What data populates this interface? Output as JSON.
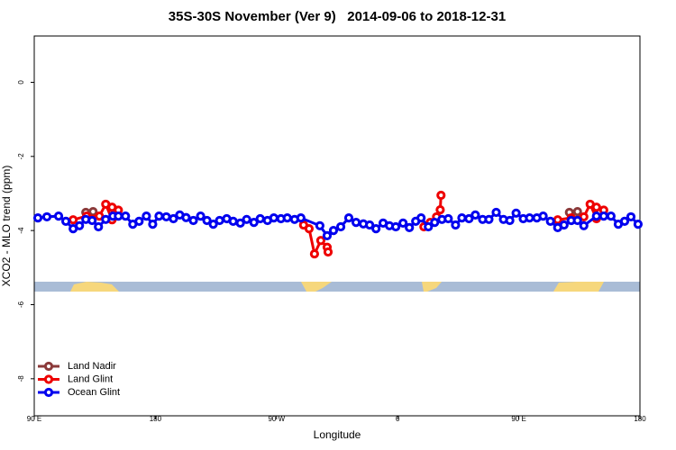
{
  "chart_data": {
    "type": "scatter",
    "title": "35S-30S November (Ver 9)   2014-09-06 to 2018-12-31",
    "xlabel": "Longitude",
    "ylabel": "XCO2 - MLO trend (ppm)",
    "xlim": [
      90,
      540
    ],
    "ylim": [
      -9,
      1.25
    ],
    "xticks": [
      {
        "value": 90,
        "label": "90 E"
      },
      180,
      {
        "value": 270,
        "label": "90 W"
      },
      {
        "value": 360,
        "label": "0"
      },
      {
        "value": 450,
        "label": "90 E"
      },
      {
        "value": 540,
        "label": "180"
      }
    ],
    "yticks": [
      0,
      -2,
      -4,
      -6,
      -8
    ],
    "legend": "bottom-left",
    "series": [
      {
        "name": "Land Nadir",
        "color": "#8b3a3a",
        "x": [
          128.3,
          133.7,
          null,
          487.6,
          493.6
        ],
        "values": [
          -3.51,
          -3.49,
          null,
          -3.51,
          -3.49
        ]
      },
      {
        "name": "Land Glint",
        "color": "#ee0000",
        "x": [
          118.9,
          128.9,
          138.4,
          143.1,
          147.8,
          147.8,
          152.5,
          null,
          290.1,
          294.2,
          298.2,
          302.9,
          307.6,
          308.3,
          null,
          379.5,
          384.2,
          388.9,
          391.6,
          392.2,
          null,
          478.9,
          488.9,
          498.3,
          503.0,
          507.7,
          507.7,
          513.1
        ],
        "values": [
          -3.71,
          -3.61,
          -3.61,
          -3.29,
          -3.71,
          -3.37,
          -3.45,
          null,
          -3.85,
          -3.95,
          -4.63,
          -4.27,
          -4.45,
          -4.58,
          null,
          -3.9,
          -3.78,
          -3.63,
          -3.44,
          -3.05,
          null,
          -3.71,
          -3.66,
          -3.63,
          -3.29,
          -3.68,
          -3.37,
          -3.45
        ]
      },
      {
        "name": "Ocean Glint",
        "color": "#0000ee",
        "x": [
          92.7,
          99.4,
          108.1,
          113.5,
          118.9,
          123.6,
          128.3,
          133.0,
          137.7,
          143.1,
          148.4,
          152.5,
          157.8,
          163.2,
          167.9,
          173.3,
          178.0,
          182.7,
          188.1,
          193.4,
          198.1,
          202.8,
          208.2,
          213.6,
          218.3,
          223.0,
          227.7,
          233.0,
          237.8,
          243.1,
          247.8,
          253.2,
          257.9,
          263.3,
          268.0,
          273.3,
          278.0,
          283.4,
          288.1,
          302.2,
          307.6,
          312.3,
          317.7,
          323.7,
          329.1,
          334.5,
          339.2,
          343.9,
          349.2,
          353.9,
          358.6,
          364.0,
          368.7,
          373.4,
          377.4,
          382.8,
          387.5,
          392.9,
          397.6,
          403.0,
          407.7,
          413.0,
          417.7,
          423.1,
          427.8,
          433.2,
          438.6,
          443.3,
          448.0,
          453.3,
          458.0,
          463.4,
          468.1,
          473.5,
          478.9,
          483.6,
          488.9,
          493.6,
          498.3,
          507.7,
          513.1,
          518.5,
          523.9,
          528.6,
          533.3,
          538.6
        ],
        "values": [
          -3.66,
          -3.63,
          -3.61,
          -3.75,
          -3.95,
          -3.87,
          -3.7,
          -3.73,
          -3.9,
          -3.7,
          -3.61,
          -3.61,
          -3.61,
          -3.83,
          -3.75,
          -3.61,
          -3.83,
          -3.61,
          -3.63,
          -3.68,
          -3.58,
          -3.65,
          -3.73,
          -3.61,
          -3.73,
          -3.83,
          -3.73,
          -3.68,
          -3.75,
          -3.8,
          -3.7,
          -3.78,
          -3.68,
          -3.73,
          -3.66,
          -3.68,
          -3.66,
          -3.7,
          -3.66,
          -3.87,
          -4.14,
          -4.0,
          -3.9,
          -3.66,
          -3.78,
          -3.82,
          -3.85,
          -3.95,
          -3.8,
          -3.87,
          -3.9,
          -3.8,
          -3.92,
          -3.75,
          -3.66,
          -3.9,
          -3.78,
          -3.7,
          -3.68,
          -3.85,
          -3.66,
          -3.68,
          -3.58,
          -3.7,
          -3.7,
          -3.51,
          -3.7,
          -3.73,
          -3.53,
          -3.68,
          -3.66,
          -3.66,
          -3.61,
          -3.75,
          -3.92,
          -3.85,
          -3.73,
          -3.73,
          -3.87,
          -3.61,
          -3.61,
          -3.61,
          -3.83,
          -3.75,
          -3.63,
          -3.83
        ]
      }
    ]
  }
}
